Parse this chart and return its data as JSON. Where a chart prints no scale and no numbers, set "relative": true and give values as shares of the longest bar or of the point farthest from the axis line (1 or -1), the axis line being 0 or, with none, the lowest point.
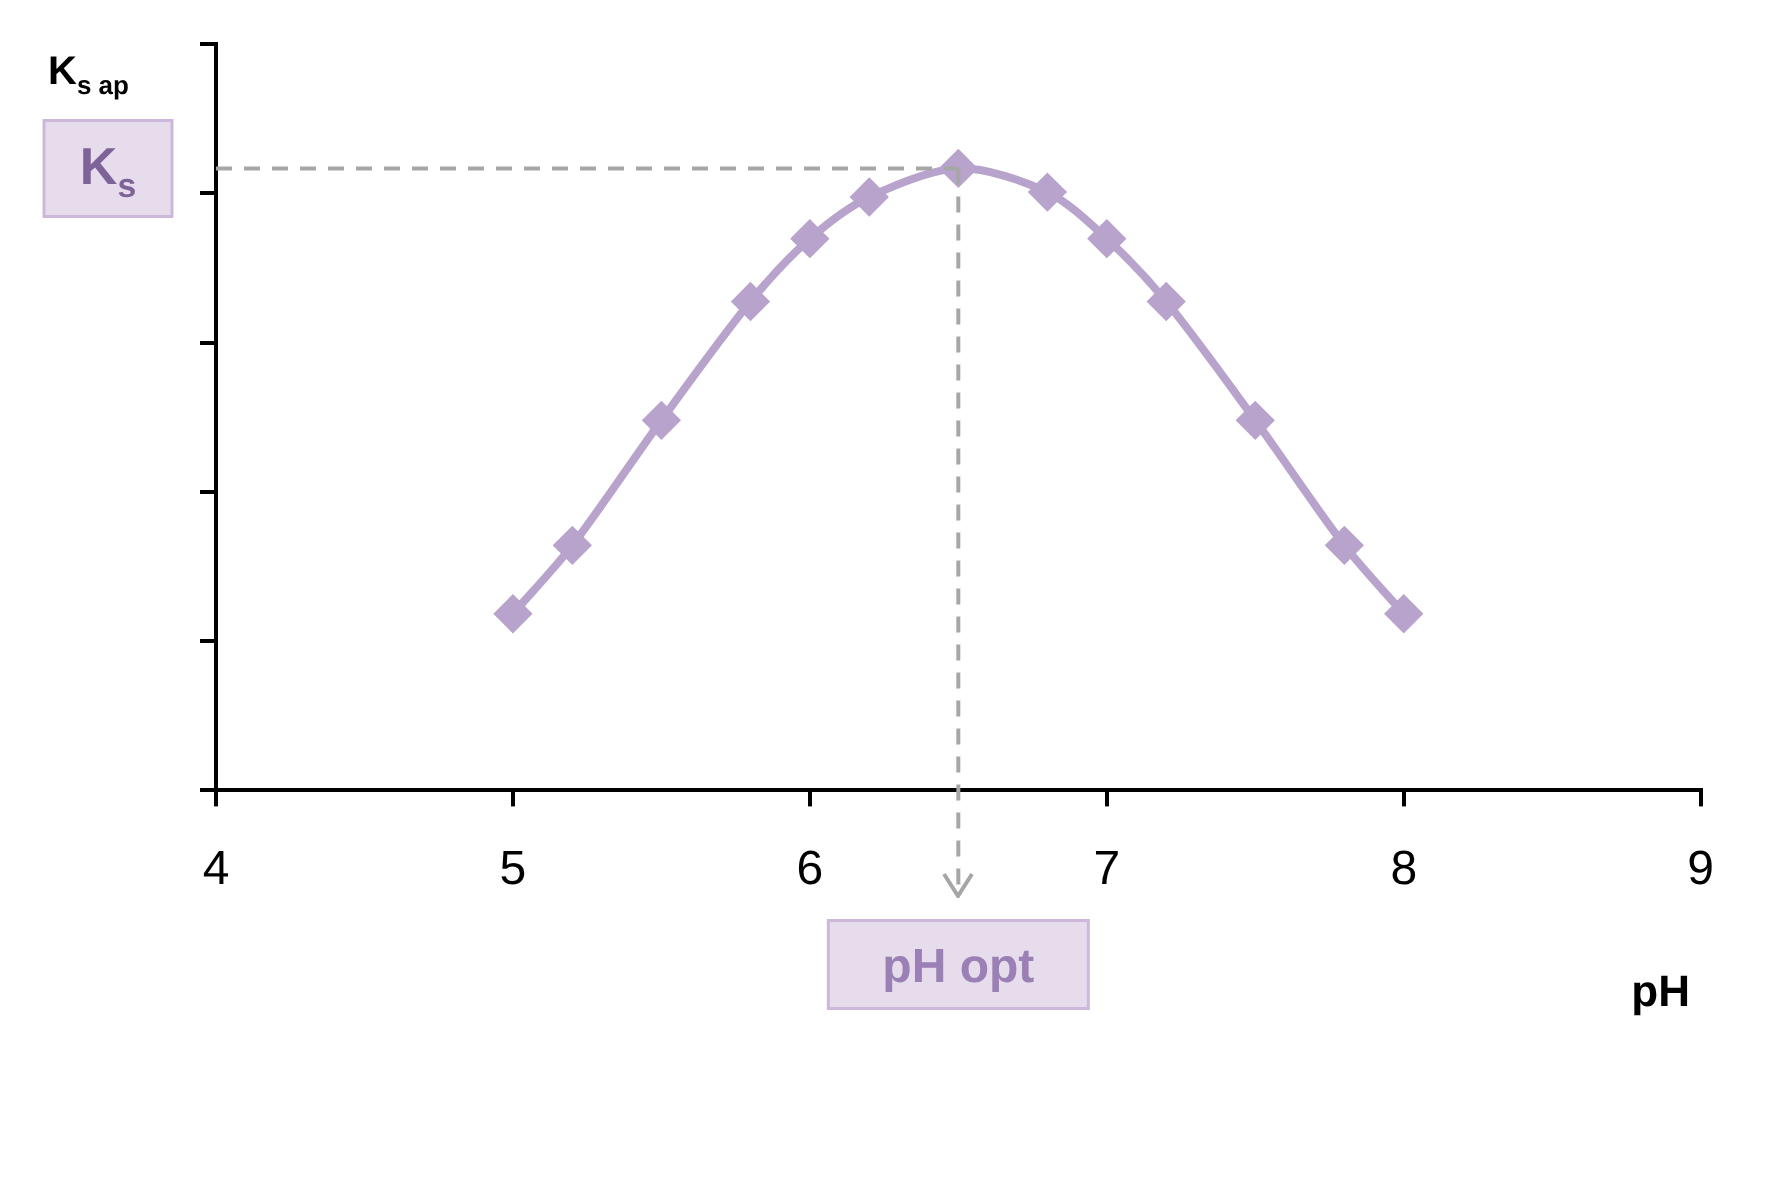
{
  "chart_data": {
    "type": "line",
    "xlabel": "pH",
    "ylabel": "K$_{s ap}$",
    "relative": true,
    "x": [
      5,
      5.2,
      5.5,
      5.8,
      6,
      6.2,
      6.5,
      6.8,
      7,
      7.2,
      7.5,
      7.8,
      8
    ],
    "series": [
      {
        "color": "#b8a3cc",
        "values": [
          0.284,
          0.394,
          0.595,
          0.786,
          0.887,
          0.954,
          1,
          0.962,
          0.887,
          0.786,
          0.595,
          0.394,
          0.284
        ]
      }
    ],
    "xlim": [
      4,
      9
    ],
    "xticks": [
      4,
      5,
      6,
      7,
      8,
      9
    ],
    "marker": "diamond",
    "line_style": "solid",
    "grid": false,
    "legend": false,
    "ref_lines": [
      {
        "axis": "y",
        "value": 1,
        "label": "K$_{s}$",
        "color": "#a6a6a6",
        "line_style": "dashed"
      },
      {
        "axis": "x",
        "value": 6.5,
        "label": "pH opt",
        "color": "#a6a6a6",
        "line_style": "dashed"
      }
    ]
  }
}
